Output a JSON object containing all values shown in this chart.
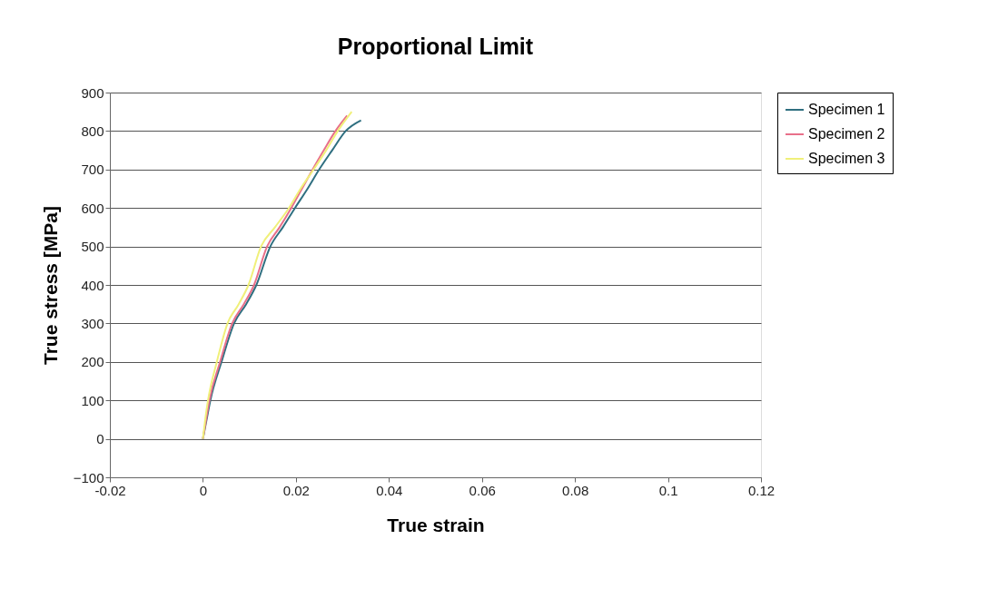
{
  "chart_data": {
    "type": "line",
    "title": "Proportional Limit",
    "xlabel": "True strain",
    "ylabel": "True stress [MPa]",
    "xlim": [
      -0.02,
      0.12
    ],
    "xticks": [
      -0.02,
      0,
      0.02,
      0.04,
      0.06,
      0.08,
      0.1,
      0.12
    ],
    "ylim": [
      -100,
      900
    ],
    "yticks": [
      -100,
      0,
      100,
      200,
      300,
      400,
      500,
      600,
      700,
      800,
      900
    ],
    "grid": "y",
    "legend": "right",
    "marker": "none",
    "line_style": "solid",
    "series": [
      {
        "name": "Specimen 1",
        "color": "#2f6f80",
        "x": [
          0,
          0.0008,
          0.0016,
          0.004,
          0.0067,
          0.0093,
          0.0115,
          0.0145,
          0.0172,
          0.0198,
          0.0225,
          0.025,
          0.0278,
          0.0307,
          0.034
        ],
        "values": [
          0,
          50,
          100,
          200,
          300,
          350,
          400,
          500,
          550,
          600,
          650,
          700,
          750,
          800,
          828
        ]
      },
      {
        "name": "Specimen 2",
        "color": "#e8708a",
        "x": [
          0,
          0.0007,
          0.0014,
          0.0037,
          0.0063,
          0.0088,
          0.011,
          0.0138,
          0.0165,
          0.019,
          0.0213,
          0.0236,
          0.026,
          0.0285,
          0.031
        ],
        "values": [
          0,
          50,
          100,
          200,
          300,
          350,
          400,
          500,
          550,
          600,
          650,
          700,
          750,
          800,
          840
        ]
      },
      {
        "name": "Specimen 3",
        "color": "#f0f07a",
        "x": [
          0,
          0.0005,
          0.0011,
          0.003,
          0.0053,
          0.0077,
          0.0098,
          0.0125,
          0.0155,
          0.0185,
          0.021,
          0.0238,
          0.0265,
          0.029,
          0.032
        ],
        "values": [
          0,
          50,
          100,
          200,
          300,
          350,
          400,
          500,
          550,
          600,
          650,
          700,
          750,
          800,
          850
        ]
      }
    ]
  }
}
